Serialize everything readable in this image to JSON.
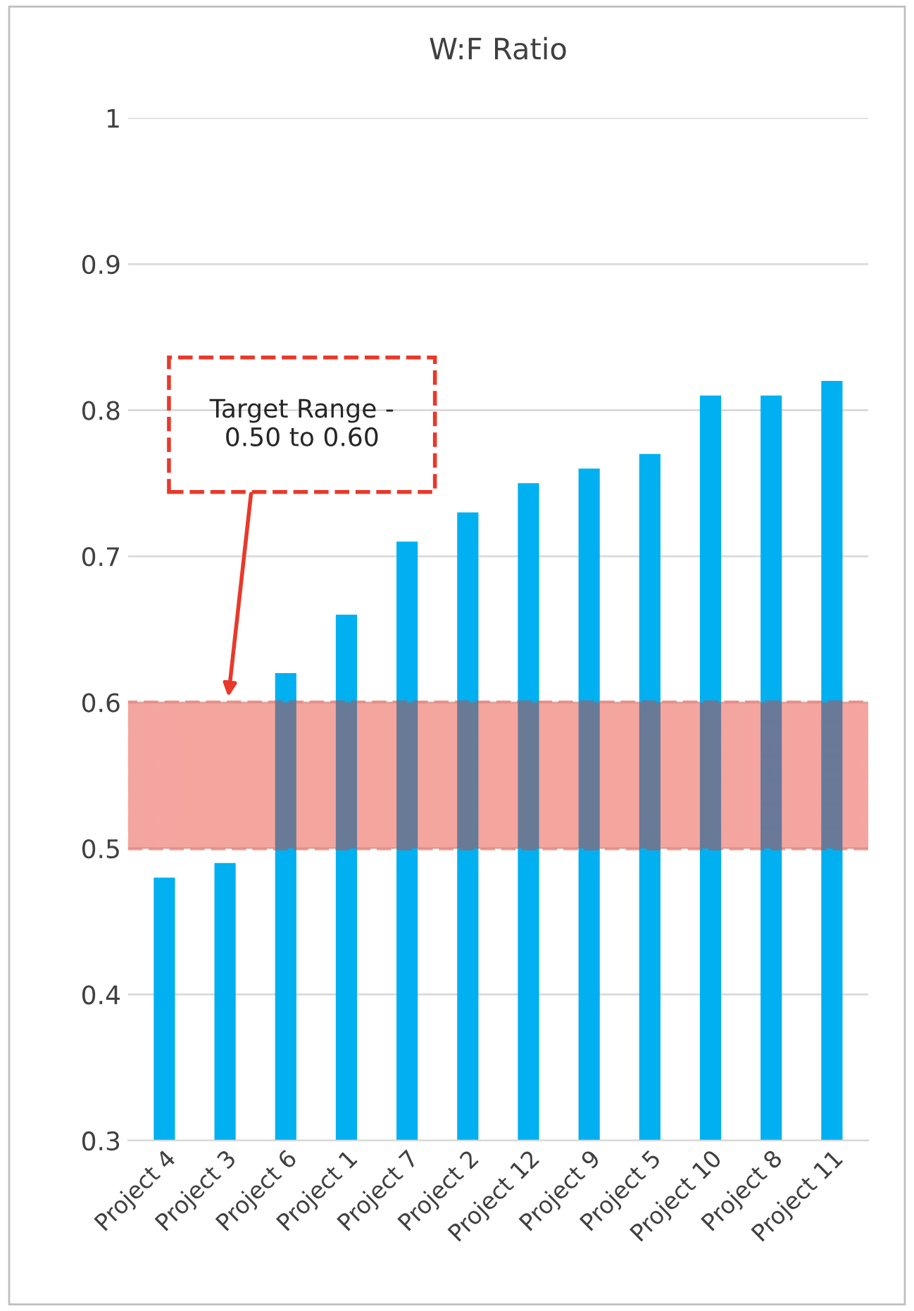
{
  "chart_data": {
    "type": "bar",
    "title": "W:F Ratio",
    "categories": [
      "Project 4",
      "Project 3",
      "Project 6",
      "Project 1",
      "Project 7",
      "Project 2",
      "Project 12",
      "Project 9",
      "Project 5",
      "Project 10",
      "Project 8",
      "Project 11"
    ],
    "values": [
      0.48,
      0.49,
      0.62,
      0.66,
      0.71,
      0.73,
      0.75,
      0.76,
      0.77,
      0.81,
      0.81,
      0.82
    ],
    "color": "#00b0f0",
    "ylim": [
      0.3,
      1
    ],
    "yticks": [
      0.3,
      0.4,
      0.5,
      0.6,
      0.7,
      0.8,
      0.9,
      1
    ],
    "grid": "y",
    "bands": [
      {
        "axis": "y",
        "from": 0.5,
        "to": 0.6,
        "color": "#e8392a"
      }
    ],
    "annotations": [
      "Target Range -\n0.50 to 0.60"
    ]
  }
}
